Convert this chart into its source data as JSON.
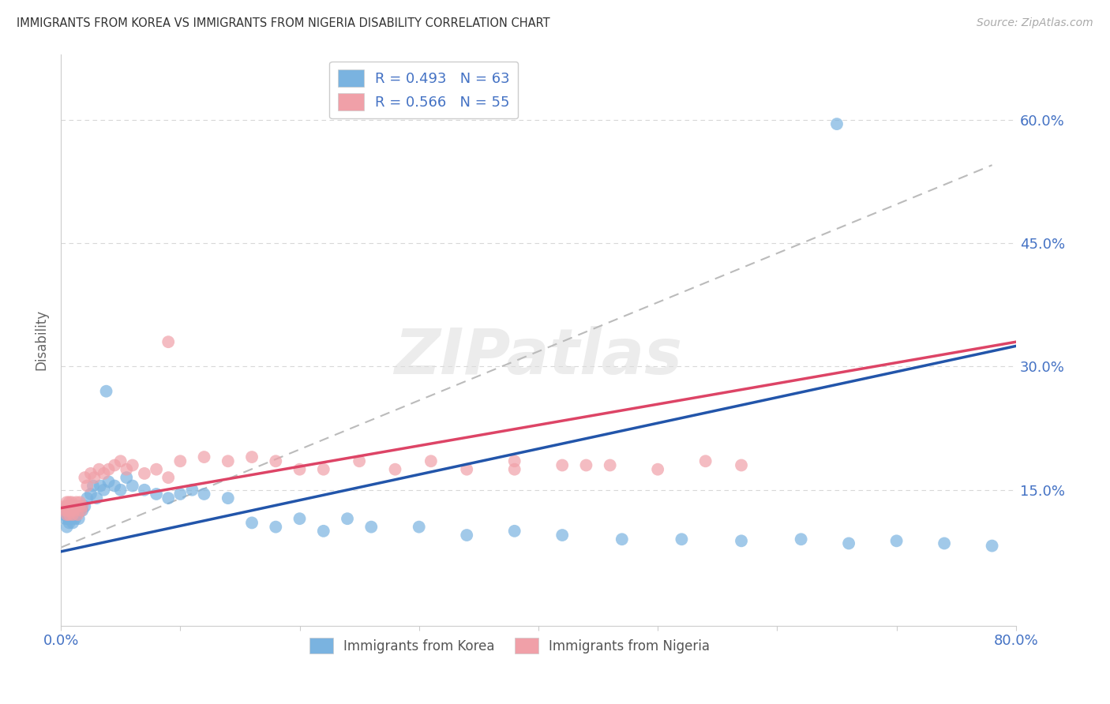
{
  "title": "IMMIGRANTS FROM KOREA VS IMMIGRANTS FROM NIGERIA DISABILITY CORRELATION CHART",
  "source": "Source: ZipAtlas.com",
  "ylabel": "Disability",
  "xlim": [
    0.0,
    0.8
  ],
  "ylim": [
    -0.015,
    0.68
  ],
  "yticks": [
    0.15,
    0.3,
    0.45,
    0.6
  ],
  "ytick_labels": [
    "15.0%",
    "30.0%",
    "45.0%",
    "60.0%"
  ],
  "xtick_labels_left": "0.0%",
  "xtick_labels_right": "80.0%",
  "korea_R": 0.493,
  "korea_N": 63,
  "nigeria_R": 0.566,
  "nigeria_N": 55,
  "korea_color": "#7ab3e0",
  "nigeria_color": "#f0a0a8",
  "korea_line_color": "#2255aa",
  "nigeria_line_color": "#dd4466",
  "background_color": "#ffffff",
  "watermark": "ZIPatlas",
  "korea_trendline": [
    0.0,
    0.8,
    0.075,
    0.325
  ],
  "nigeria_trendline": [
    0.0,
    0.8,
    0.128,
    0.33
  ],
  "dashed_line": [
    0.0,
    0.78,
    0.08,
    0.545
  ],
  "korea_scatter_x": [
    0.003,
    0.004,
    0.005,
    0.005,
    0.006,
    0.006,
    0.007,
    0.007,
    0.008,
    0.008,
    0.009,
    0.009,
    0.01,
    0.01,
    0.011,
    0.012,
    0.012,
    0.013,
    0.014,
    0.015,
    0.015,
    0.016,
    0.017,
    0.018,
    0.02,
    0.022,
    0.025,
    0.027,
    0.03,
    0.033,
    0.036,
    0.04,
    0.045,
    0.05,
    0.055,
    0.06,
    0.07,
    0.08,
    0.09,
    0.1,
    0.11,
    0.12,
    0.14,
    0.16,
    0.18,
    0.2,
    0.22,
    0.24,
    0.26,
    0.3,
    0.34,
    0.38,
    0.42,
    0.47,
    0.52,
    0.57,
    0.62,
    0.66,
    0.7,
    0.74,
    0.78,
    0.65,
    0.038
  ],
  "korea_scatter_y": [
    0.12,
    0.115,
    0.13,
    0.105,
    0.12,
    0.115,
    0.125,
    0.11,
    0.13,
    0.12,
    0.115,
    0.125,
    0.12,
    0.11,
    0.125,
    0.13,
    0.115,
    0.12,
    0.125,
    0.13,
    0.115,
    0.125,
    0.13,
    0.125,
    0.13,
    0.14,
    0.145,
    0.155,
    0.14,
    0.155,
    0.15,
    0.16,
    0.155,
    0.15,
    0.165,
    0.155,
    0.15,
    0.145,
    0.14,
    0.145,
    0.15,
    0.145,
    0.14,
    0.11,
    0.105,
    0.115,
    0.1,
    0.115,
    0.105,
    0.105,
    0.095,
    0.1,
    0.095,
    0.09,
    0.09,
    0.088,
    0.09,
    0.085,
    0.088,
    0.085,
    0.082,
    0.595,
    0.27
  ],
  "nigeria_scatter_x": [
    0.003,
    0.004,
    0.005,
    0.005,
    0.006,
    0.006,
    0.007,
    0.007,
    0.008,
    0.008,
    0.009,
    0.01,
    0.01,
    0.011,
    0.012,
    0.013,
    0.014,
    0.015,
    0.016,
    0.017,
    0.018,
    0.02,
    0.022,
    0.025,
    0.028,
    0.032,
    0.036,
    0.04,
    0.045,
    0.05,
    0.055,
    0.06,
    0.07,
    0.08,
    0.09,
    0.1,
    0.12,
    0.14,
    0.16,
    0.18,
    0.2,
    0.22,
    0.25,
    0.28,
    0.31,
    0.34,
    0.38,
    0.42,
    0.46,
    0.5,
    0.54,
    0.57,
    0.44,
    0.38,
    0.09
  ],
  "nigeria_scatter_y": [
    0.13,
    0.125,
    0.135,
    0.12,
    0.13,
    0.125,
    0.135,
    0.12,
    0.13,
    0.125,
    0.135,
    0.12,
    0.13,
    0.125,
    0.13,
    0.135,
    0.12,
    0.13,
    0.135,
    0.125,
    0.13,
    0.165,
    0.155,
    0.17,
    0.165,
    0.175,
    0.17,
    0.175,
    0.18,
    0.185,
    0.175,
    0.18,
    0.17,
    0.175,
    0.165,
    0.185,
    0.19,
    0.185,
    0.19,
    0.185,
    0.175,
    0.175,
    0.185,
    0.175,
    0.185,
    0.175,
    0.185,
    0.18,
    0.18,
    0.175,
    0.185,
    0.18,
    0.18,
    0.175,
    0.33
  ]
}
